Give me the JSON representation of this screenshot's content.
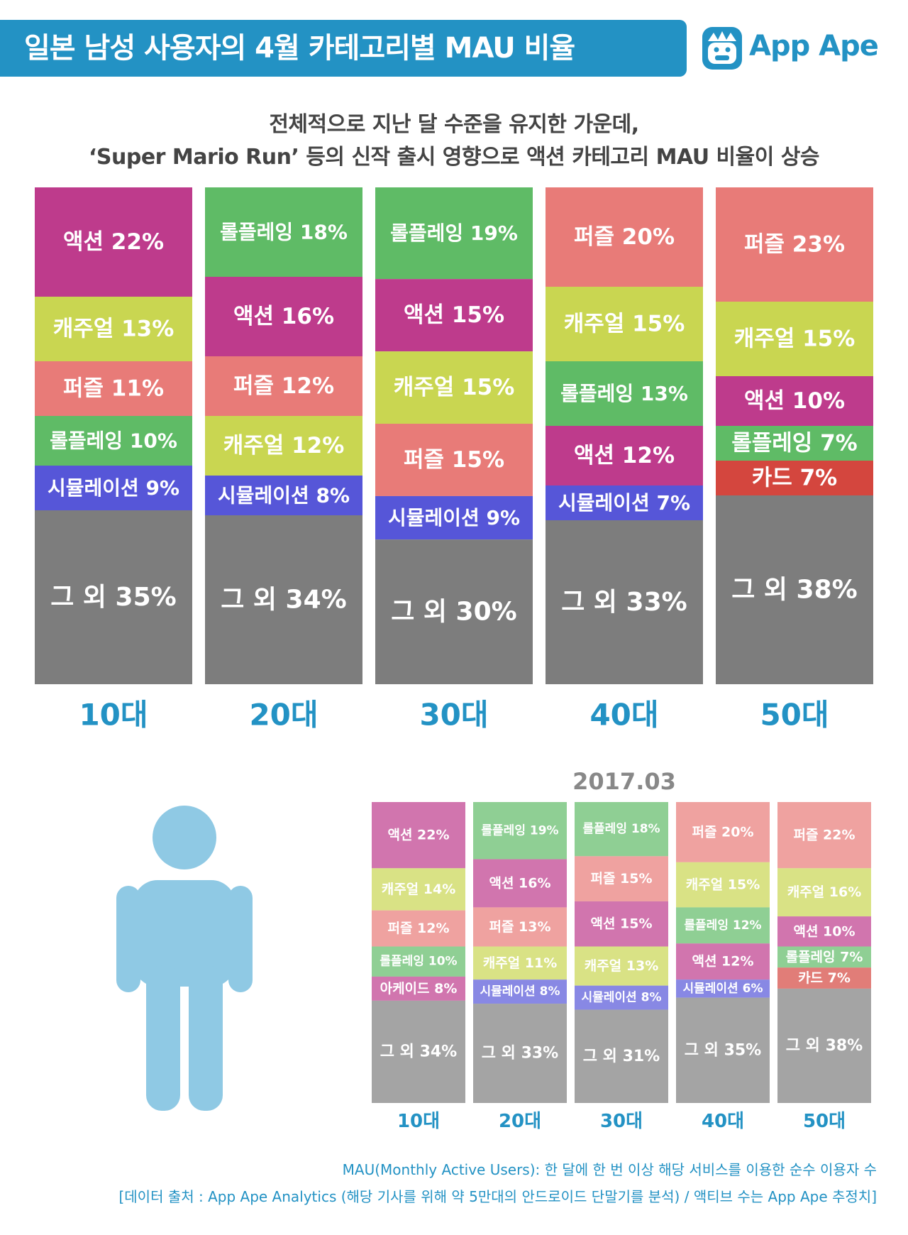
{
  "header": {
    "title": "일본 남성 사용자의 4월 카테고리별 MAU 비율",
    "logo_text": "App Ape"
  },
  "subtitle": {
    "line1": "전체적으로 지난 달 수준을 유지한 가운데,",
    "line2": "‘Super Mario Run’ 등의 신작 출시 영향으로 액션 카테고리 MAU 비율이 상승"
  },
  "colors": {
    "accent": "#2392c4",
    "액션": "#be3b8c",
    "캐주얼": "#c9d651",
    "퍼즐": "#e87b78",
    "롤플레잉": "#5fbb66",
    "시뮬레이션": "#5656d8",
    "아케이드": "#be3b8c",
    "카드": "#d4463e",
    "그 외": "#7d7d7d",
    "person": "#8fc9e4"
  },
  "chart_data": [
    {
      "type": "bar",
      "stacked": true,
      "normalized": true,
      "categories": [
        "10대",
        "20대",
        "30대",
        "40대",
        "50대"
      ],
      "columns": [
        [
          {
            "name": "액션",
            "value": 22,
            "label": "액션 22%"
          },
          {
            "name": "캐주얼",
            "value": 13,
            "label": "캐주얼 13%"
          },
          {
            "name": "퍼즐",
            "value": 11,
            "label": "퍼즐 11%"
          },
          {
            "name": "롤플레잉",
            "value": 10,
            "label": "롤플레잉 10%"
          },
          {
            "name": "시뮬레이션",
            "value": 9,
            "label": "시뮬레이션 9%"
          },
          {
            "name": "그 외",
            "value": 35,
            "label": "그 외 35%"
          }
        ],
        [
          {
            "name": "롤플레잉",
            "value": 18,
            "label": "롤플레잉 18%"
          },
          {
            "name": "액션",
            "value": 16,
            "label": "액션 16%"
          },
          {
            "name": "퍼즐",
            "value": 12,
            "label": "퍼즐 12%"
          },
          {
            "name": "캐주얼",
            "value": 12,
            "label": "캐주얼 12%"
          },
          {
            "name": "시뮬레이션",
            "value": 8,
            "label": "시뮬레이션 8%"
          },
          {
            "name": "그 외",
            "value": 34,
            "label": "그 외 34%"
          }
        ],
        [
          {
            "name": "롤플레잉",
            "value": 19,
            "label": "롤플레잉 19%"
          },
          {
            "name": "액션",
            "value": 15,
            "label": "액션 15%"
          },
          {
            "name": "캐주얼",
            "value": 15,
            "label": "캐주얼 15%"
          },
          {
            "name": "퍼즐",
            "value": 15,
            "label": "퍼즐 15%"
          },
          {
            "name": "시뮬레이션",
            "value": 9,
            "label": "시뮬레이션 9%"
          },
          {
            "name": "그 외",
            "value": 30,
            "label": "그 외 30%"
          }
        ],
        [
          {
            "name": "퍼즐",
            "value": 20,
            "label": "퍼즐 20%"
          },
          {
            "name": "캐주얼",
            "value": 15,
            "label": "캐주얼 15%"
          },
          {
            "name": "롤플레잉",
            "value": 13,
            "label": "롤플레잉 13%"
          },
          {
            "name": "액션",
            "value": 12,
            "label": "액션 12%"
          },
          {
            "name": "시뮬레이션",
            "value": 7,
            "label": "시뮬레이션 7%"
          },
          {
            "name": "그 외",
            "value": 33,
            "label": "그 외 33%"
          }
        ],
        [
          {
            "name": "퍼즐",
            "value": 23,
            "label": "퍼즐 23%"
          },
          {
            "name": "캐주얼",
            "value": 15,
            "label": "캐주얼 15%"
          },
          {
            "name": "액션",
            "value": 10,
            "label": "액션 10%"
          },
          {
            "name": "롤플레잉",
            "value": 7,
            "label": "롤플레잉 7%"
          },
          {
            "name": "카드",
            "value": 7,
            "label": "카드 7%"
          },
          {
            "name": "그 외",
            "value": 38,
            "label": "그 외 38%"
          }
        ]
      ]
    },
    {
      "type": "bar",
      "stacked": true,
      "normalized": true,
      "title": "2017.03",
      "categories": [
        "10대",
        "20대",
        "30대",
        "40대",
        "50대"
      ],
      "columns": [
        [
          {
            "name": "액션",
            "value": 22,
            "label": "액션 22%"
          },
          {
            "name": "캐주얼",
            "value": 14,
            "label": "캐주얼 14%"
          },
          {
            "name": "퍼즐",
            "value": 12,
            "label": "퍼즐 12%"
          },
          {
            "name": "롤플레잉",
            "value": 10,
            "label": "롤플레잉 10%"
          },
          {
            "name": "아케이드",
            "value": 8,
            "label": "아케이드 8%"
          },
          {
            "name": "그 외",
            "value": 34,
            "label": "그 외 34%"
          }
        ],
        [
          {
            "name": "롤플레잉",
            "value": 19,
            "label": "롤플레잉 19%"
          },
          {
            "name": "액션",
            "value": 16,
            "label": "액션 16%"
          },
          {
            "name": "퍼즐",
            "value": 13,
            "label": "퍼즐 13%"
          },
          {
            "name": "캐주얼",
            "value": 11,
            "label": "캐주얼 11%"
          },
          {
            "name": "시뮬레이션",
            "value": 8,
            "label": "시뮬레이션 8%"
          },
          {
            "name": "그 외",
            "value": 33,
            "label": "그 외 33%"
          }
        ],
        [
          {
            "name": "롤플레잉",
            "value": 18,
            "label": "롤플레잉 18%"
          },
          {
            "name": "퍼즐",
            "value": 15,
            "label": "퍼즐 15%"
          },
          {
            "name": "액션",
            "value": 15,
            "label": "액션 15%"
          },
          {
            "name": "캐주얼",
            "value": 13,
            "label": "캐주얼 13%"
          },
          {
            "name": "시뮬레이션",
            "value": 8,
            "label": "시뮬레이션 8%"
          },
          {
            "name": "그 외",
            "value": 31,
            "label": "그 외 31%"
          }
        ],
        [
          {
            "name": "퍼즐",
            "value": 20,
            "label": "퍼즐 20%"
          },
          {
            "name": "캐주얼",
            "value": 15,
            "label": "캐주얼 15%"
          },
          {
            "name": "롤플레잉",
            "value": 12,
            "label": "롤플레잉 12%"
          },
          {
            "name": "액션",
            "value": 12,
            "label": "액션 12%"
          },
          {
            "name": "시뮬레이션",
            "value": 6,
            "label": "시뮬레이션 6%"
          },
          {
            "name": "그 외",
            "value": 35,
            "label": "그 외 35%"
          }
        ],
        [
          {
            "name": "퍼즐",
            "value": 22,
            "label": "퍼즐 22%"
          },
          {
            "name": "캐주얼",
            "value": 16,
            "label": "캐주얼 16%"
          },
          {
            "name": "액션",
            "value": 10,
            "label": "액션 10%"
          },
          {
            "name": "롤플레잉",
            "value": 7,
            "label": "롤플레잉 7%"
          },
          {
            "name": "카드",
            "value": 7,
            "label": "카드 7%"
          },
          {
            "name": "그 외",
            "value": 38,
            "label": "그 외 38%"
          }
        ]
      ]
    }
  ],
  "footnote": {
    "line1": "MAU(Monthly Active Users): 한 달에 한 번 이상 해당 서비스를 이용한 순수 이용자 수",
    "line2": "[데이터 출처 : App Ape Analytics (해당 기사를 위해 약 5만대의 안드로이드 단말기를 분석) / 액티브 수는 App Ape 추정치]"
  }
}
